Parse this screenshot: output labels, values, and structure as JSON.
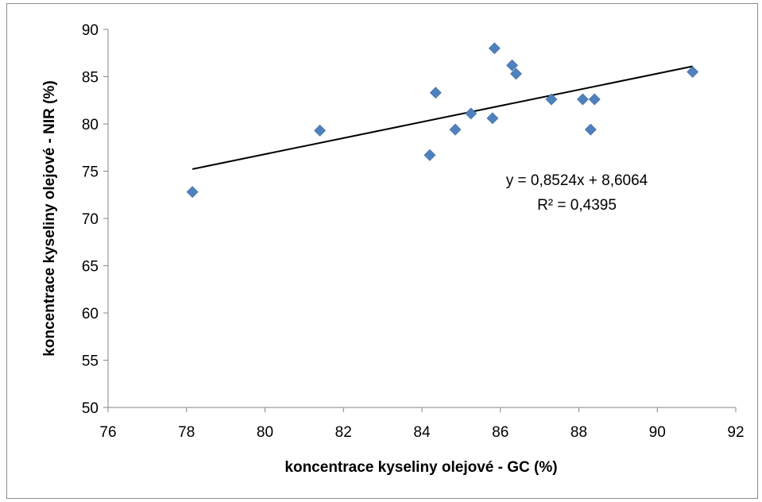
{
  "chart_data": {
    "type": "scatter",
    "title": "",
    "xlabel": "koncentrace kyseliny olejové - GC (%)",
    "ylabel": "koncentrace kyseliny olejové - NIR (%)",
    "xlim": [
      76,
      92
    ],
    "ylim": [
      50,
      90
    ],
    "xticks": [
      76,
      78,
      80,
      82,
      84,
      86,
      88,
      90,
      92
    ],
    "yticks": [
      50,
      55,
      60,
      65,
      70,
      75,
      80,
      85,
      90
    ],
    "grid": false,
    "legend": "none",
    "marker_color": "#4F81BD",
    "trendline_color": "#000000",
    "series": [
      {
        "points": [
          [
            78.15,
            72.8
          ],
          [
            81.4,
            79.3
          ],
          [
            84.2,
            76.7
          ],
          [
            84.35,
            83.3
          ],
          [
            84.85,
            79.4
          ],
          [
            85.25,
            81.1
          ],
          [
            85.8,
            80.6
          ],
          [
            85.85,
            88.0
          ],
          [
            86.3,
            86.2
          ],
          [
            86.4,
            85.3
          ],
          [
            87.3,
            82.6
          ],
          [
            88.1,
            82.6
          ],
          [
            88.3,
            79.4
          ],
          [
            88.4,
            82.6
          ],
          [
            90.9,
            85.5
          ]
        ]
      }
    ],
    "trendline": {
      "slope": 0.8524,
      "intercept": 8.6064,
      "x_range": [
        78.15,
        90.9
      ]
    },
    "annotations": {
      "equation": "y = 0,8524x + 8,6064",
      "r_squared": "R² = 0,4395"
    }
  }
}
